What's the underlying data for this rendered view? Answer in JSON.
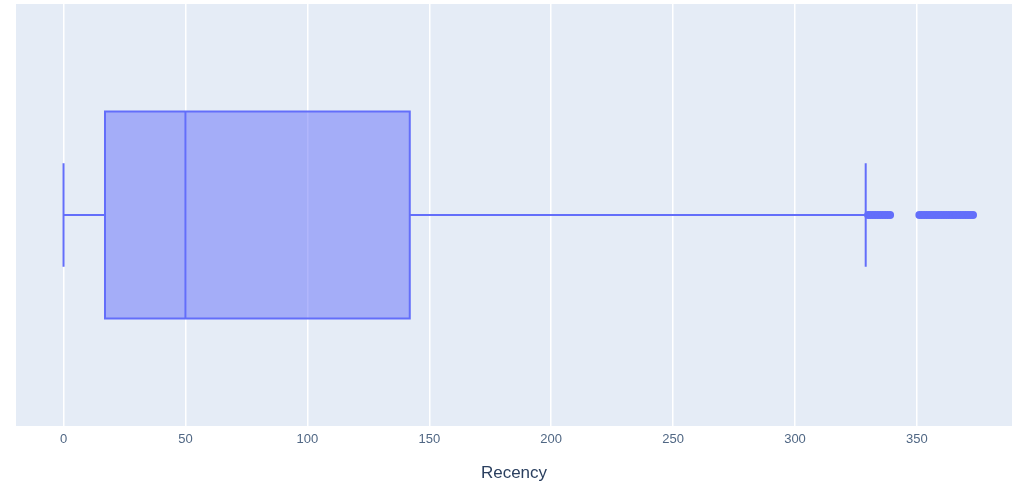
{
  "chart_data": {
    "type": "box",
    "orientation": "horizontal",
    "categories": [
      null
    ],
    "xlabel": "Recency",
    "color": "#636efa",
    "boxes": [
      {
        "low": 0,
        "q1": 17,
        "median": 50,
        "q3": 142,
        "high": 329,
        "outliers": [
          330,
          331,
          332,
          333,
          334,
          335,
          336,
          337,
          338,
          339,
          351,
          352,
          353,
          354,
          355,
          356,
          357,
          358,
          359,
          360,
          361,
          362,
          363,
          364,
          365,
          366,
          367,
          368,
          369,
          370,
          371,
          372,
          373
        ]
      }
    ],
    "xlim": [
      -19.5,
      389
    ],
    "xticks": [
      0,
      50,
      100,
      150,
      200,
      250,
      300,
      350
    ],
    "grid": "x",
    "tick_labels": "x"
  }
}
